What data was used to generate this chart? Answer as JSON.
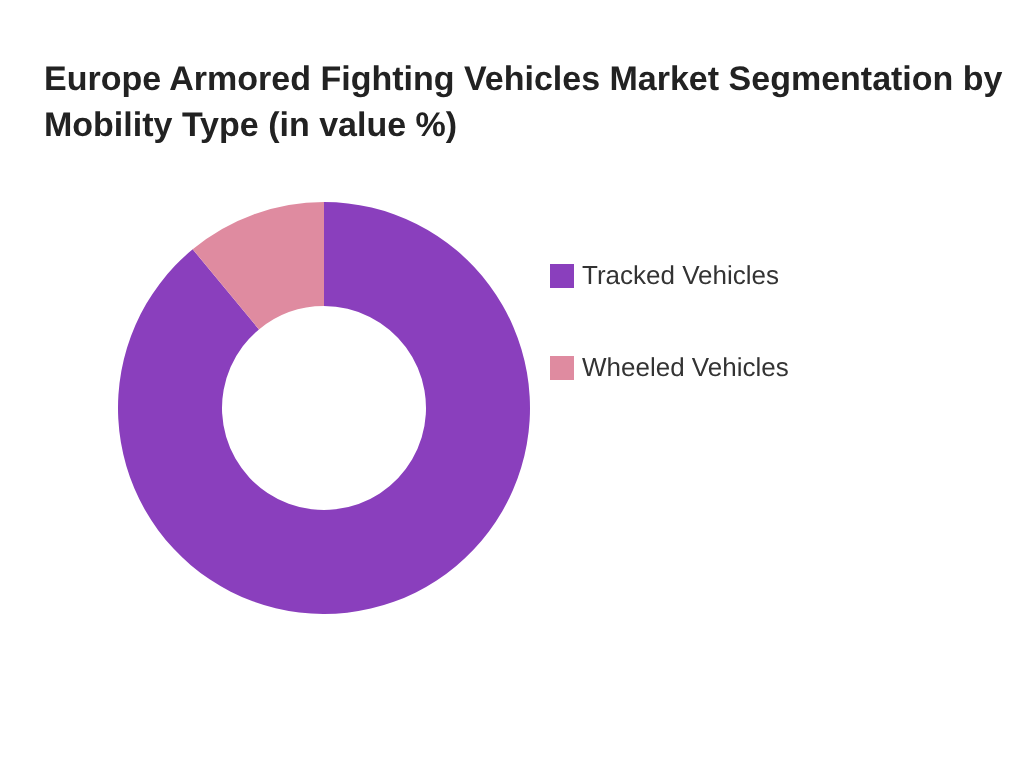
{
  "chart_data": {
    "type": "donut",
    "title": "Europe Armored Fighting Vehicles Market Segmentation by Mobility Type (in value %)",
    "categories": [
      "Tracked Vehicles",
      "Wheeled Vehicles"
    ],
    "values": [
      89,
      11
    ],
    "colors": [
      "#8a3fbd",
      "#df8ba0"
    ],
    "legend": "right"
  }
}
